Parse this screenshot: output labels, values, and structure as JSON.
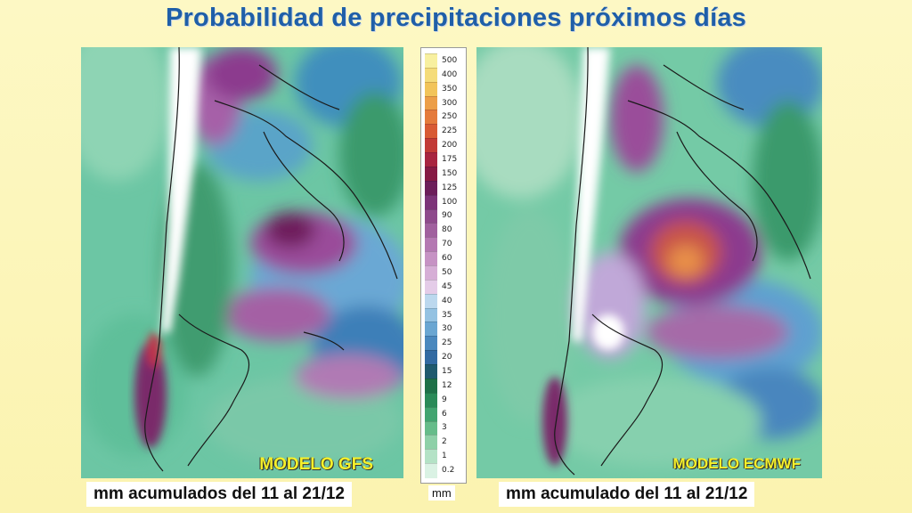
{
  "title": "Probabilidad de precipitaciones próximos días",
  "left_panel": {
    "model_label": "MODELO GFS",
    "caption": "mm acumulados del 11 al 21/12"
  },
  "right_panel": {
    "model_label": "MODELO ECMWF",
    "caption": "mm acumulado del 11 al 21/12"
  },
  "legend": {
    "unit": "mm",
    "levels": [
      {
        "label": "500",
        "color": "#f8f0a0"
      },
      {
        "label": "400",
        "color": "#f5dc7a"
      },
      {
        "label": "350",
        "color": "#f2c45a"
      },
      {
        "label": "300",
        "color": "#ec9e48"
      },
      {
        "label": "250",
        "color": "#e47a3c"
      },
      {
        "label": "225",
        "color": "#d85a34"
      },
      {
        "label": "200",
        "color": "#c23a36"
      },
      {
        "label": "175",
        "color": "#a82440"
      },
      {
        "label": "150",
        "color": "#861a44"
      },
      {
        "label": "125",
        "color": "#6c1e5a"
      },
      {
        "label": "100",
        "color": "#7c3478"
      },
      {
        "label": "90",
        "color": "#8e4a8c"
      },
      {
        "label": "80",
        "color": "#a0609e"
      },
      {
        "label": "70",
        "color": "#b478b2"
      },
      {
        "label": "60",
        "color": "#c692c4"
      },
      {
        "label": "50",
        "color": "#d6aed6"
      },
      {
        "label": "45",
        "color": "#e4cce8"
      },
      {
        "label": "40",
        "color": "#bcd8ee"
      },
      {
        "label": "35",
        "color": "#94c2e2"
      },
      {
        "label": "30",
        "color": "#6aa6d2"
      },
      {
        "label": "25",
        "color": "#4a88be"
      },
      {
        "label": "20",
        "color": "#326aa2"
      },
      {
        "label": "15",
        "color": "#1f5a6e"
      },
      {
        "label": "12",
        "color": "#1e7048"
      },
      {
        "label": "9",
        "color": "#2a8a58"
      },
      {
        "label": "6",
        "color": "#42a470"
      },
      {
        "label": "3",
        "color": "#66bc8a"
      },
      {
        "label": "2",
        "color": "#8ed0a8"
      },
      {
        "label": "1",
        "color": "#b4e2c6"
      },
      {
        "label": "0.2",
        "color": "#daf2e4"
      }
    ]
  }
}
